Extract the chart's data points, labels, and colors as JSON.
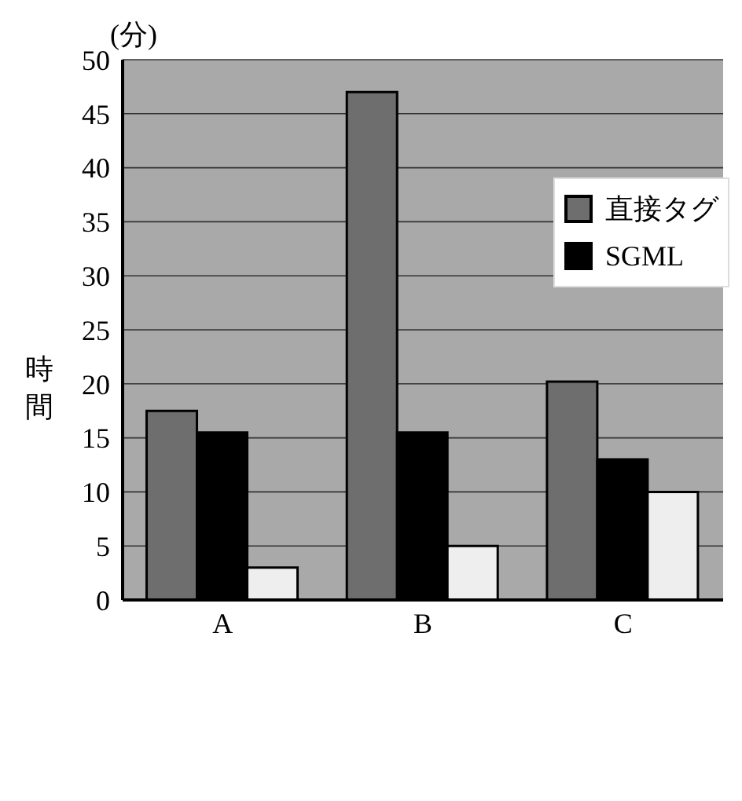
{
  "chart_data": {
    "type": "bar",
    "ylabel": "時間",
    "annotations": [
      "(分)"
    ],
    "categories": [
      "A",
      "B",
      "C"
    ],
    "series": [
      {
        "name": "直接タグ",
        "color": "#6e6e6e",
        "values": [
          17.5,
          47,
          20.2
        ]
      },
      {
        "name": "SGML",
        "color": "#000000",
        "values": [
          15.5,
          15.5,
          13
        ]
      },
      {
        "color": "#eeeeee",
        "values": [
          3,
          5,
          10
        ]
      }
    ],
    "ylim": [
      0,
      50
    ],
    "yticks": [
      0,
      5,
      10,
      15,
      20,
      25,
      30,
      35,
      40,
      45,
      50
    ],
    "grid": "y",
    "legend": "top right"
  }
}
